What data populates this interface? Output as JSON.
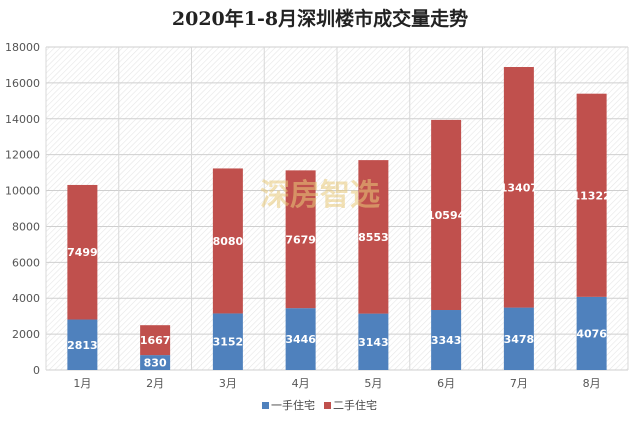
{
  "chart_data": {
    "type": "bar",
    "stacked": true,
    "title": "2020年1-8月深圳楼市成交量走势",
    "categories": [
      "1月",
      "2月",
      "3月",
      "4月",
      "5月",
      "6月",
      "7月",
      "8月"
    ],
    "series": [
      {
        "name": "一手住宅",
        "color": "#4f81bd",
        "values": [
          2813,
          830,
          3152,
          3446,
          3143,
          3343,
          3478,
          4076
        ]
      },
      {
        "name": "二手住宅",
        "color": "#c0504d",
        "values": [
          7499,
          1667,
          8080,
          7679,
          8553,
          10594,
          13407,
          11322
        ]
      }
    ],
    "ylim": [
      0,
      18000
    ],
    "yticks": [
      0,
      2000,
      4000,
      6000,
      8000,
      10000,
      12000,
      14000,
      16000,
      18000
    ],
    "grid": true,
    "legend_position": "bottom",
    "watermark": "深房智选"
  }
}
